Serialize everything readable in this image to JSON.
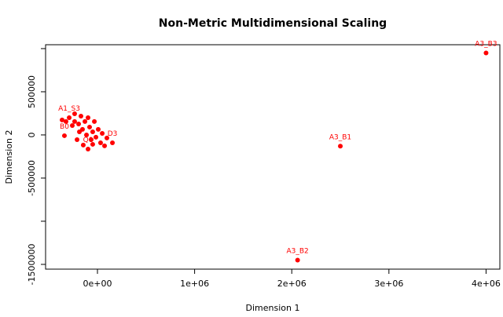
{
  "chart_data": {
    "type": "scatter",
    "title": "Non-Metric Multidimensional Scaling",
    "xlabel": "Dimension 1",
    "ylabel": "Dimension 2",
    "color": "#ff0000",
    "x": [
      -364000,
      -340000,
      -291000,
      -259000,
      -235000,
      -210000,
      -194000,
      -170000,
      -154000,
      -129000,
      -113000,
      -97000,
      -81000,
      -65000,
      -49000,
      -32000,
      -16000,
      8000,
      32000,
      49000,
      73000,
      97000,
      154000,
      -235000,
      -324000,
      -146000,
      -186000,
      -49000,
      -97000,
      2500000,
      2060000,
      4000000
    ],
    "values": [
      173000,
      -9000,
      200000,
      109000,
      245000,
      -55000,
      127000,
      218000,
      64000,
      155000,
      0,
      200000,
      91000,
      -55000,
      36000,
      155000,
      -27000,
      64000,
      -91000,
      18000,
      -127000,
      -36000,
      -91000,
      155000,
      155000,
      -118000,
      36000,
      -109000,
      -164000,
      -130000,
      -1450000,
      950000
    ],
    "labels": [
      null,
      "B0",
      "A1_S3",
      null,
      null,
      null,
      null,
      null,
      null,
      null,
      null,
      null,
      null,
      null,
      null,
      null,
      null,
      null,
      null,
      null,
      null,
      null,
      "D3",
      null,
      null,
      null,
      null,
      null,
      "Q0",
      "A3_B1",
      "A3_B2",
      "A3_B3"
    ],
    "xlim": [
      -534000,
      4142000
    ],
    "ylim": [
      -1555000,
      1045000
    ],
    "xticks": [
      {
        "value": 0,
        "label": "0e+00"
      },
      {
        "value": 1000000,
        "label": "1e+06"
      },
      {
        "value": 2000000,
        "label": "2e+06"
      },
      {
        "value": 3000000,
        "label": "3e+06"
      },
      {
        "value": 4000000,
        "label": "4e+06"
      }
    ],
    "yticks": [
      {
        "value": -1500000,
        "label": "-1500000"
      },
      {
        "value": -1000000,
        "label": null
      },
      {
        "value": -500000,
        "label": "-500000"
      },
      0,
      500000,
      {
        "value": 1000000,
        "label": null
      }
    ]
  }
}
